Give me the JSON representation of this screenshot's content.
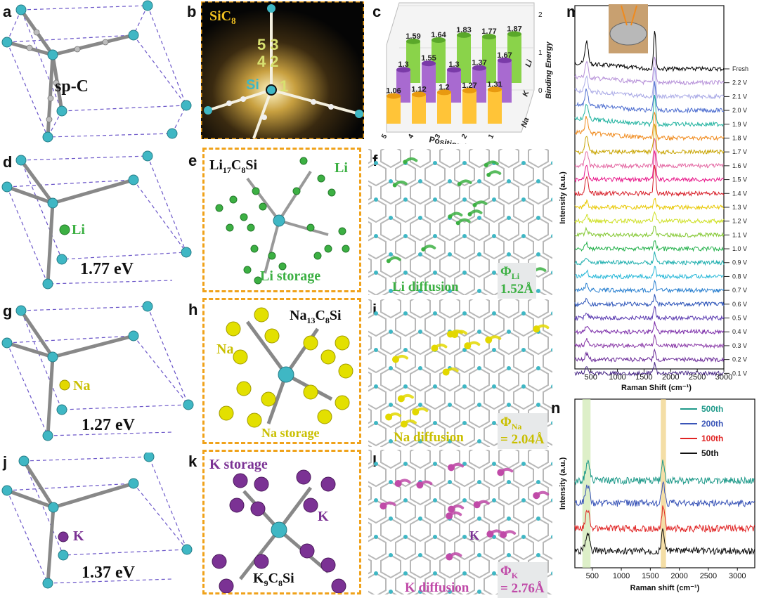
{
  "panel_labels": [
    "a",
    "b",
    "c",
    "d",
    "e",
    "f",
    "g",
    "h",
    "i",
    "j",
    "k",
    "l",
    "m",
    "n"
  ],
  "structures": {
    "a": {
      "label": "sp-C"
    },
    "d": {
      "ion": "Li",
      "energy": "1.77 eV"
    },
    "g": {
      "ion": "Na",
      "energy": "1.27 eV"
    },
    "j": {
      "ion": "K",
      "energy": "1.37 eV"
    }
  },
  "b": {
    "formula_main": "SiC",
    "formula_sub": "8",
    "si_label": "Si",
    "positions": [
      "5",
      "3",
      "4",
      "2",
      "1"
    ]
  },
  "e": {
    "formula": {
      "a": "Li",
      "a_sub": "17",
      "b": "C",
      "b_sub": "8",
      "c": "Si"
    },
    "ion": "Li",
    "storage": "Li storage"
  },
  "h": {
    "formula": {
      "a": "Na",
      "a_sub": "13",
      "b": "C",
      "b_sub": "8",
      "c": "Si"
    },
    "ion": "Na",
    "storage": "Na storage"
  },
  "k": {
    "formula": {
      "a": "K",
      "a_sub": "9",
      "b": "C",
      "b_sub": "8",
      "c": "Si"
    },
    "ion": "K",
    "storage": "K storage"
  },
  "f": {
    "diffusion": "Li diffusion",
    "phi": "Φ",
    "phi_sub": "Li",
    "value": "1.52Å"
  },
  "i": {
    "diffusion": "Na diffusion",
    "phi": "Φ",
    "phi_sub": "Na",
    "value": "= 2.04Å"
  },
  "l": {
    "diffusion": "K diffusion",
    "phi": "Φ",
    "phi_sub": "K",
    "value": "= 2.76Å",
    "ion": "K"
  },
  "colors": {
    "li": "#3cb043",
    "na": "#e3d800",
    "k": "#7b3294",
    "si": "#3fb7c4",
    "c": "#9a9a9a",
    "box": "#f0a21a"
  },
  "chart_data": [
    {
      "panel": "c",
      "type": "bar",
      "xlabel": "Position Number",
      "zlabel": "Binding Energy",
      "categories": [
        "5",
        "4",
        "3",
        "2",
        "1"
      ],
      "zticks": [
        "0",
        "1",
        "2"
      ],
      "series": [
        {
          "name": "Li",
          "values": [
            1.59,
            1.64,
            1.83,
            1.77,
            1.87
          ]
        },
        {
          "name": "K",
          "values": [
            1.3,
            1.55,
            1.3,
            1.37,
            1.67
          ]
        },
        {
          "name": "Na",
          "values": [
            1.06,
            1.12,
            1.2,
            1.27,
            1.31
          ]
        }
      ]
    },
    {
      "panel": "m",
      "type": "line",
      "xlabel": "Raman Shift (cm⁻¹)",
      "ylabel": "Intensity (a.u.)",
      "xticks": [
        "500",
        "1000",
        "1500",
        "2000",
        "2500",
        "3000"
      ],
      "xlim": [
        200,
        3000
      ],
      "series": [
        {
          "name": "Fresh",
          "color": "#000000"
        },
        {
          "name": "2.2 V",
          "color": "#b58fd8"
        },
        {
          "name": "2.1 V",
          "color": "#a9a9e6"
        },
        {
          "name": "2.0 V",
          "color": "#4f6fd0"
        },
        {
          "name": "1.9 V",
          "color": "#22b3a0"
        },
        {
          "name": "1.8 V",
          "color": "#f08a1c"
        },
        {
          "name": "1.7 V",
          "color": "#c8a400"
        },
        {
          "name": "1.6 V",
          "color": "#e46aa4"
        },
        {
          "name": "1.5 V",
          "color": "#e8198a"
        },
        {
          "name": "1.4 V",
          "color": "#d8202a"
        },
        {
          "name": "1.3 V",
          "color": "#e8c800"
        },
        {
          "name": "1.2 V",
          "color": "#cfe026"
        },
        {
          "name": "1.1 V",
          "color": "#84c832"
        },
        {
          "name": "1.0 V",
          "color": "#22b04a"
        },
        {
          "name": "0.9 V",
          "color": "#22b0b0"
        },
        {
          "name": "0.8 V",
          "color": "#28b8d8"
        },
        {
          "name": "0.7 V",
          "color": "#2a80d0"
        },
        {
          "name": "0.6 V",
          "color": "#2a52b8"
        },
        {
          "name": "0.5 V",
          "color": "#5a3ab0"
        },
        {
          "name": "0.4 V",
          "color": "#7a2aa8"
        },
        {
          "name": "0.3 V",
          "color": "#8a3aa8"
        },
        {
          "name": "0.2 V",
          "color": "#6a2a98"
        },
        {
          "name": "0.1 V",
          "color": "#4a2a88"
        }
      ],
      "peaks": [
        420,
        1700
      ]
    },
    {
      "panel": "n",
      "type": "line",
      "xlabel": "Raman shift (cm⁻¹)",
      "ylabel": "Intensity (a.u.)",
      "xticks": [
        "500",
        "1000",
        "1500",
        "2000",
        "2500",
        "3000"
      ],
      "xlim": [
        200,
        3300
      ],
      "series": [
        {
          "name": "500th",
          "color": "#1f9a8a"
        },
        {
          "name": "200th",
          "color": "#3a55b8"
        },
        {
          "name": "100th",
          "color": "#e02424"
        },
        {
          "name": "50th",
          "color": "#111111"
        }
      ],
      "peaks": [
        420,
        1720
      ]
    }
  ]
}
